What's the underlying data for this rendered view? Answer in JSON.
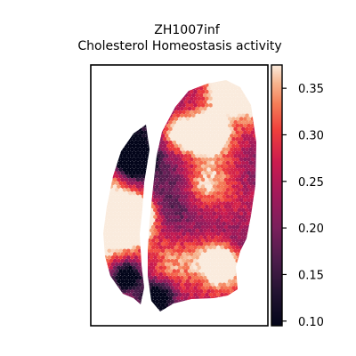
{
  "chart_data": {
    "type": "heatmap",
    "title_line1": "ZH1007inf",
    "title_line2": "Cholesterol Homeostasis activity",
    "colormap": "rocket",
    "colorbar": {
      "range": [
        0.095,
        0.375
      ],
      "ticks": [
        0.1,
        0.15,
        0.2,
        0.25,
        0.3,
        0.35
      ],
      "tick_labels": [
        "0.10",
        "0.15",
        "0.20",
        "0.25",
        "0.30",
        "0.35"
      ]
    },
    "grid": false,
    "axes_ticks": false,
    "colors": {
      "low": "#03051a",
      "mid_low": "#701f57",
      "mid": "#cb1b4f",
      "mid_high": "#f37651",
      "high": "#faebdd"
    }
  }
}
